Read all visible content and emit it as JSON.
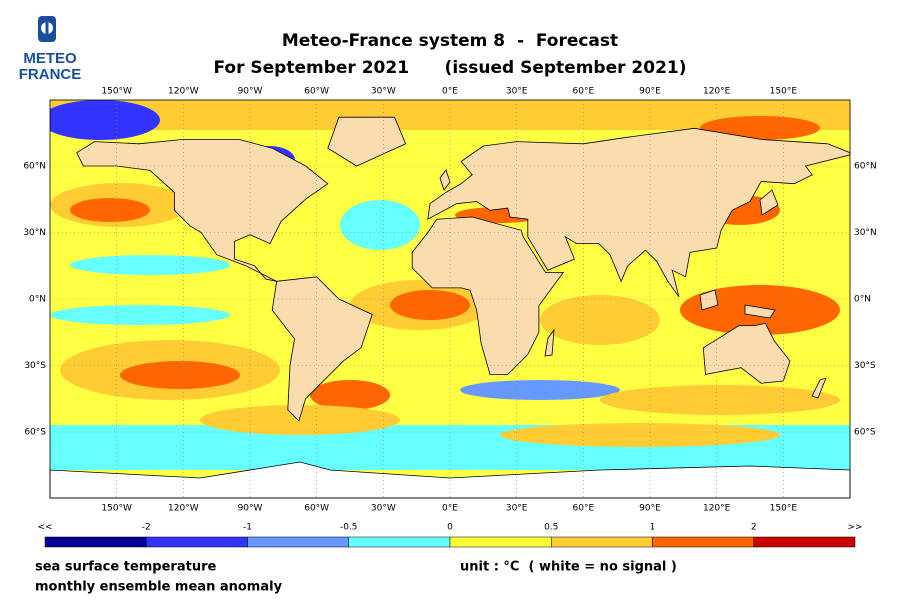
{
  "logo": {
    "line1": "METEO",
    "line2": "FRANCE"
  },
  "header": {
    "title": "Meteo-France system 8  -  Forecast",
    "subtitle": "For September 2021      (issued September 2021)"
  },
  "map": {
    "lon_labels": [
      "150°W",
      "120°W",
      "90°W",
      "60°W",
      "30°W",
      "0°E",
      "30°E",
      "60°E",
      "90°E",
      "120°E",
      "150°E"
    ],
    "lat_labels": [
      "60°N",
      "30°N",
      "0°N",
      "30°S",
      "60°S"
    ]
  },
  "colorbar": {
    "labels": [
      "<<",
      "-2",
      "-1",
      "-0.5",
      "0",
      "0.5",
      "1",
      "2",
      ">>"
    ],
    "colors": [
      "#000099",
      "#3333ff",
      "#6699ff",
      "#66ffff",
      "#ffff33",
      "#ffcc33",
      "#ff6600",
      "#cc0000"
    ]
  },
  "footer": {
    "variable": "sea surface temperature",
    "description": "monthly ensemble mean anomaly",
    "unit": "unit : °C  ( white = no signal )"
  }
}
